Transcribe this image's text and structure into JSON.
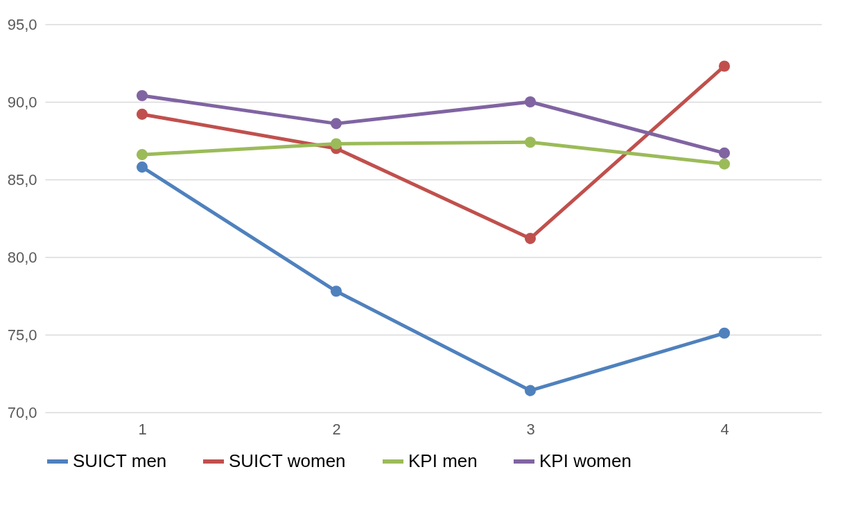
{
  "chart_data": {
    "type": "line",
    "categories": [
      "1",
      "2",
      "3",
      "4"
    ],
    "series": [
      {
        "name": "SUICT men",
        "color": "#4f81bd",
        "values": [
          85.8,
          77.8,
          71.4,
          75.1
        ]
      },
      {
        "name": "SUICT women",
        "color": "#c0504d",
        "values": [
          89.2,
          87.0,
          81.2,
          92.3
        ]
      },
      {
        "name": "KPI men",
        "color": "#9bbb59",
        "values": [
          86.6,
          87.3,
          87.4,
          86.0
        ]
      },
      {
        "name": "KPI women",
        "color": "#8064a2",
        "values": [
          90.4,
          88.6,
          90.0,
          86.7
        ]
      }
    ],
    "ylim": [
      70,
      95
    ],
    "yticks": [
      {
        "value": 70,
        "label": "70,0"
      },
      {
        "value": 75,
        "label": "75,0"
      },
      {
        "value": 80,
        "label": "80,0"
      },
      {
        "value": 85,
        "label": "85,0"
      },
      {
        "value": 90,
        "label": "90,0"
      },
      {
        "value": 95,
        "label": "95,0"
      }
    ],
    "grid": "y",
    "legend": "bottom",
    "marker": "circle",
    "line_style": "solid"
  }
}
